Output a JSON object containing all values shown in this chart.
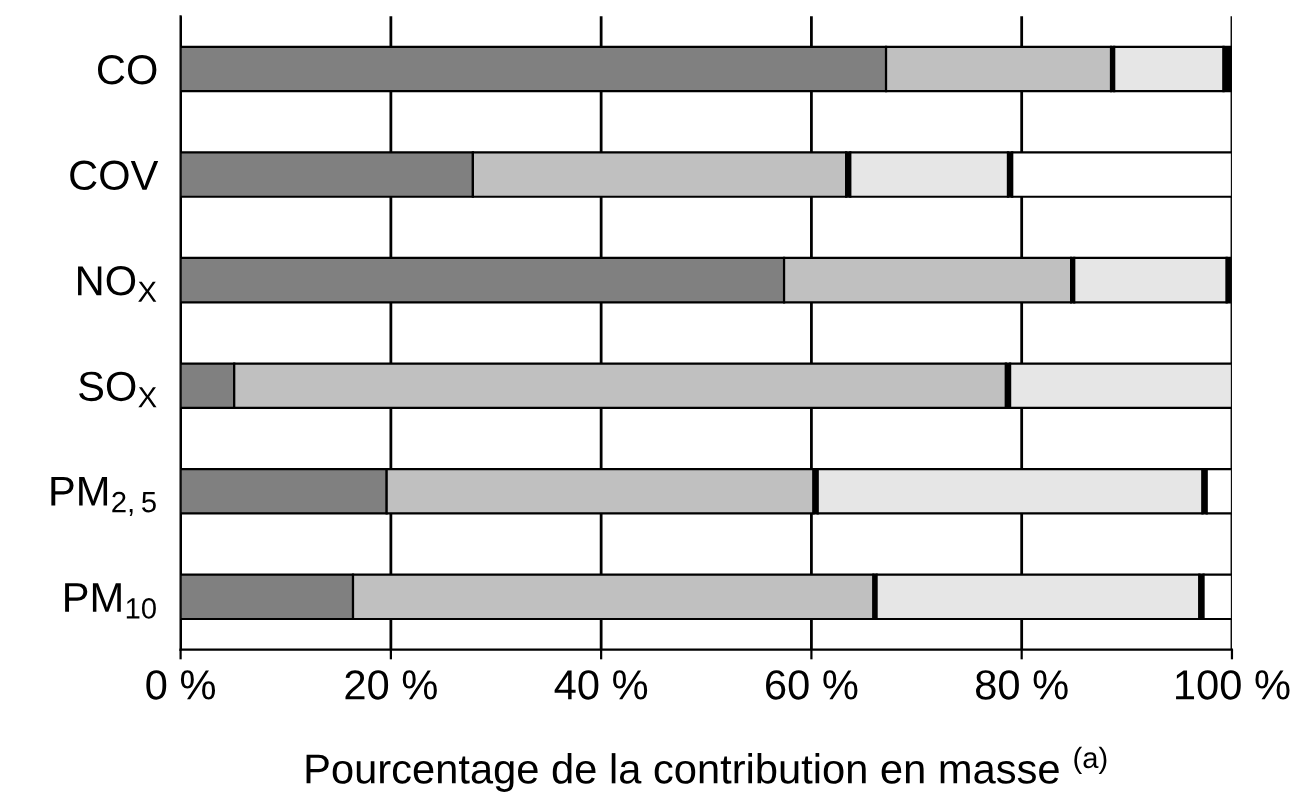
{
  "chart_data": {
    "type": "bar",
    "orientation": "horizontal",
    "stacked": true,
    "categories": [
      "CO",
      "COV",
      "NO$_{X}$",
      "SO$_{X}$",
      "PM$_{2,5}$",
      "PM$_{10}$"
    ],
    "xlabel": "Pourcentage de la contribution en masse $^{(a)}$",
    "series": [
      {
        "color": "#808080",
        "values": [
          67.1,
          27.8,
          57.4,
          5.1,
          19.6,
          16.4
        ]
      },
      {
        "color": "#c0c0c0",
        "values": [
          21.4,
          35.5,
          27.3,
          73.4,
          40.6,
          49.5
        ]
      },
      {
        "color": "#000000",
        "values": [
          0.3,
          0.4,
          0.3,
          0.4,
          0.4,
          0.3
        ]
      },
      {
        "color": "#e6e6e6",
        "values": [
          10.4,
          15.0,
          14.5,
          21.1,
          36.6,
          30.7
        ]
      },
      {
        "color": "#000000",
        "values": [
          0.8,
          0.4,
          0.3,
          null,
          0.4,
          0.4
        ]
      },
      {
        "color": "#ffffff",
        "values": [
          null,
          20.9,
          null,
          null,
          2.4,
          2.7
        ]
      }
    ],
    "xlim": [
      0,
      100
    ],
    "xticks": [
      {
        "value": 0,
        "label": "0 %"
      },
      {
        "value": 20,
        "label": "20 %"
      },
      {
        "value": 40,
        "label": "40 %"
      },
      {
        "value": 60,
        "label": "60 %"
      },
      {
        "value": 80,
        "label": "80 %"
      },
      {
        "value": 100,
        "label": "100 %"
      }
    ],
    "grid": "x"
  }
}
